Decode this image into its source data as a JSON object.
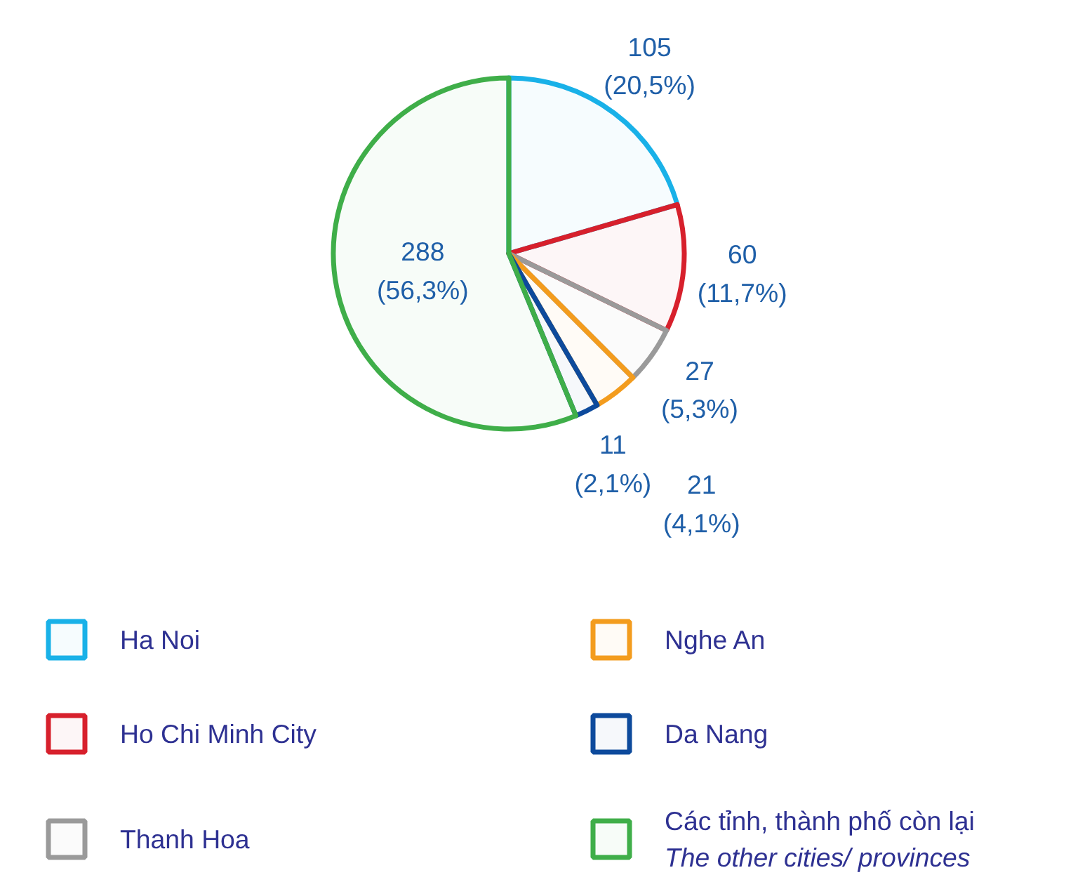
{
  "chart_data": {
    "type": "pie",
    "categories": [
      "Ha Noi",
      "Ho Chi Minh City",
      "Thanh Hoa",
      "Nghe An",
      "Da Nang",
      "Các tỉnh, thành phố còn lại\nThe other cities/ provinces"
    ],
    "values": [
      105,
      60,
      27,
      21,
      11,
      288
    ],
    "colors": [
      "#19b1e8",
      "#d7202c",
      "#9a9a9a",
      "#f39c1e",
      "#0d4a9c",
      "#3fae49"
    ],
    "value_labels": [
      "105\n(20,5%)",
      "60\n(11,7%)",
      "27\n(5,3%)",
      "21\n(4,1%)",
      "11\n(2,1%)",
      "288\n(56,3%)"
    ],
    "legend": "bottom"
  }
}
